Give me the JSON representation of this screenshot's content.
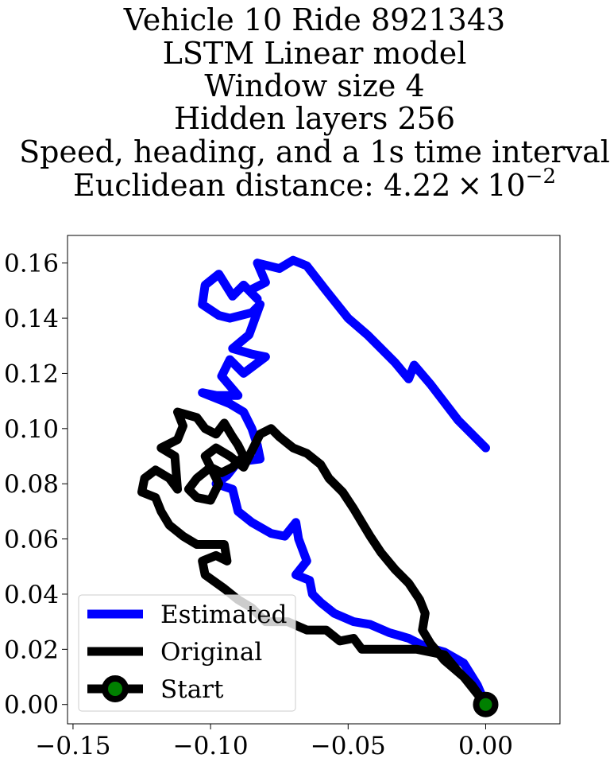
{
  "chart_data": {
    "type": "line",
    "title_lines": [
      "Vehicle 10 Ride 8921343",
      "LSTM Linear model",
      "Window size 4",
      "Hidden layers 256",
      "Speed, heading, and a 1s time interval",
      "Euclidean distance: 4.22"
    ],
    "title_exponent": {
      "mult": "×",
      "base": "10",
      "power": "−2"
    },
    "xlabel": "",
    "ylabel": "",
    "xlim": [
      -0.152,
      0.027
    ],
    "ylim": [
      -0.007,
      0.17
    ],
    "x_ticks": [
      {
        "value": -0.15,
        "label": "−0.15"
      },
      {
        "value": -0.1,
        "label": "−0.10"
      },
      {
        "value": -0.05,
        "label": "−0.05"
      },
      {
        "value": 0.0,
        "label": "0.00"
      }
    ],
    "y_ticks": [
      {
        "value": 0.0,
        "label": "0.00"
      },
      {
        "value": 0.02,
        "label": "0.02"
      },
      {
        "value": 0.04,
        "label": "0.04"
      },
      {
        "value": 0.06,
        "label": "0.06"
      },
      {
        "value": 0.08,
        "label": "0.08"
      },
      {
        "value": 0.1,
        "label": "0.10"
      },
      {
        "value": 0.12,
        "label": "0.12"
      },
      {
        "value": 0.14,
        "label": "0.14"
      },
      {
        "value": 0.16,
        "label": "0.16"
      }
    ],
    "grid": false,
    "legend_position": "lower-left",
    "series": [
      {
        "name": "Estimated",
        "color": "#0000ff",
        "points": [
          [
            0.0,
            0.093
          ],
          [
            -0.01,
            0.103
          ],
          [
            -0.02,
            0.116
          ],
          [
            -0.026,
            0.123
          ],
          [
            -0.028,
            0.118
          ],
          [
            -0.033,
            0.124
          ],
          [
            -0.043,
            0.134
          ],
          [
            -0.05,
            0.14
          ],
          [
            -0.058,
            0.15
          ],
          [
            -0.065,
            0.159
          ],
          [
            -0.07,
            0.161
          ],
          [
            -0.075,
            0.158
          ],
          [
            -0.083,
            0.16
          ],
          [
            -0.08,
            0.153
          ],
          [
            -0.086,
            0.15
          ],
          [
            -0.083,
            0.147
          ],
          [
            -0.088,
            0.152
          ],
          [
            -0.092,
            0.148
          ],
          [
            -0.097,
            0.156
          ],
          [
            -0.102,
            0.152
          ],
          [
            -0.103,
            0.145
          ],
          [
            -0.097,
            0.141
          ],
          [
            -0.093,
            0.14
          ],
          [
            -0.085,
            0.142
          ],
          [
            -0.082,
            0.145
          ],
          [
            -0.086,
            0.134
          ],
          [
            -0.092,
            0.129
          ],
          [
            -0.085,
            0.127
          ],
          [
            -0.08,
            0.126
          ],
          [
            -0.088,
            0.12
          ],
          [
            -0.093,
            0.125
          ],
          [
            -0.096,
            0.119
          ],
          [
            -0.09,
            0.112
          ],
          [
            -0.098,
            0.112
          ],
          [
            -0.103,
            0.113
          ],
          [
            -0.093,
            0.109
          ],
          [
            -0.088,
            0.106
          ],
          [
            -0.085,
            0.1
          ],
          [
            -0.083,
            0.094
          ],
          [
            -0.082,
            0.089
          ],
          [
            -0.09,
            0.088
          ],
          [
            -0.094,
            0.083
          ],
          [
            -0.098,
            0.08
          ],
          [
            -0.092,
            0.078
          ],
          [
            -0.09,
            0.07
          ],
          [
            -0.085,
            0.066
          ],
          [
            -0.078,
            0.062
          ],
          [
            -0.073,
            0.061
          ],
          [
            -0.069,
            0.066
          ],
          [
            -0.068,
            0.06
          ],
          [
            -0.065,
            0.052
          ],
          [
            -0.069,
            0.047
          ],
          [
            -0.064,
            0.045
          ],
          [
            -0.063,
            0.04
          ],
          [
            -0.06,
            0.037
          ],
          [
            -0.055,
            0.033
          ],
          [
            -0.048,
            0.03
          ],
          [
            -0.042,
            0.029
          ],
          [
            -0.035,
            0.026
          ],
          [
            -0.028,
            0.024
          ],
          [
            -0.022,
            0.021
          ],
          [
            -0.015,
            0.019
          ],
          [
            -0.008,
            0.015
          ],
          [
            -0.003,
            0.007
          ],
          [
            0.0,
            0.0
          ]
        ]
      },
      {
        "name": "Original",
        "color": "#000000",
        "points": [
          [
            0.0,
            0.0
          ],
          [
            -0.005,
            0.007
          ],
          [
            -0.01,
            0.012
          ],
          [
            -0.015,
            0.018
          ],
          [
            -0.025,
            0.02
          ],
          [
            -0.035,
            0.02
          ],
          [
            -0.045,
            0.02
          ],
          [
            -0.048,
            0.024
          ],
          [
            -0.053,
            0.023
          ],
          [
            -0.058,
            0.027
          ],
          [
            -0.065,
            0.027
          ],
          [
            -0.072,
            0.03
          ],
          [
            -0.08,
            0.03
          ],
          [
            -0.085,
            0.035
          ],
          [
            -0.09,
            0.038
          ],
          [
            -0.095,
            0.042
          ],
          [
            -0.102,
            0.047
          ],
          [
            -0.103,
            0.052
          ],
          [
            -0.098,
            0.054
          ],
          [
            -0.094,
            0.052
          ],
          [
            -0.095,
            0.058
          ],
          [
            -0.1,
            0.058
          ],
          [
            -0.105,
            0.058
          ],
          [
            -0.11,
            0.061
          ],
          [
            -0.115,
            0.065
          ],
          [
            -0.118,
            0.07
          ],
          [
            -0.12,
            0.075
          ],
          [
            -0.125,
            0.077
          ],
          [
            -0.124,
            0.082
          ],
          [
            -0.12,
            0.085
          ],
          [
            -0.115,
            0.082
          ],
          [
            -0.112,
            0.078
          ],
          [
            -0.113,
            0.09
          ],
          [
            -0.118,
            0.093
          ],
          [
            -0.112,
            0.096
          ],
          [
            -0.11,
            0.101
          ],
          [
            -0.112,
            0.106
          ],
          [
            -0.105,
            0.104
          ],
          [
            -0.102,
            0.1
          ],
          [
            -0.098,
            0.098
          ],
          [
            -0.095,
            0.102
          ],
          [
            -0.092,
            0.097
          ],
          [
            -0.09,
            0.094
          ],
          [
            -0.088,
            0.09
          ],
          [
            -0.092,
            0.086
          ],
          [
            -0.096,
            0.084
          ],
          [
            -0.1,
            0.086
          ],
          [
            -0.105,
            0.082
          ],
          [
            -0.108,
            0.078
          ],
          [
            -0.105,
            0.075
          ],
          [
            -0.1,
            0.074
          ],
          [
            -0.097,
            0.08
          ],
          [
            -0.102,
            0.09
          ],
          [
            -0.098,
            0.093
          ],
          [
            -0.093,
            0.09
          ],
          [
            -0.088,
            0.086
          ],
          [
            -0.082,
            0.098
          ],
          [
            -0.078,
            0.1
          ],
          [
            -0.075,
            0.097
          ],
          [
            -0.07,
            0.093
          ],
          [
            -0.065,
            0.091
          ],
          [
            -0.06,
            0.087
          ],
          [
            -0.057,
            0.082
          ],
          [
            -0.052,
            0.077
          ],
          [
            -0.048,
            0.071
          ],
          [
            -0.045,
            0.066
          ],
          [
            -0.042,
            0.061
          ],
          [
            -0.038,
            0.055
          ],
          [
            -0.033,
            0.049
          ],
          [
            -0.028,
            0.044
          ],
          [
            -0.024,
            0.038
          ],
          [
            -0.022,
            0.033
          ],
          [
            -0.023,
            0.027
          ],
          [
            -0.02,
            0.022
          ],
          [
            -0.015,
            0.016
          ],
          [
            -0.008,
            0.01
          ],
          [
            0.0,
            0.0
          ]
        ]
      }
    ],
    "start_point": {
      "name": "Start",
      "x": 0.0,
      "y": 0.0,
      "marker_fill": "#008000",
      "marker_edge": "#000000"
    }
  }
}
